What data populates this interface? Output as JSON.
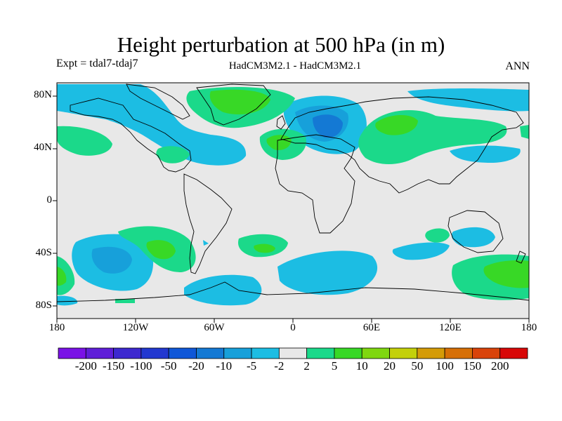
{
  "title": "Height perturbation at 500 hPa (in m)",
  "expt": "Expt = tdal7-tdaj7",
  "models": "HadCM3M2.1 - HadCM3M2.1",
  "season": "ANN",
  "lat_labels": [
    "80N",
    "40N",
    "0",
    "40S",
    "80S"
  ],
  "lon_labels": [
    "180",
    "120W",
    "60W",
    "0",
    "60E",
    "120E",
    "180"
  ],
  "colorbar": {
    "labels": [
      "-200",
      "-150",
      "-100",
      "-50",
      "-20",
      "-10",
      "-5",
      "-2",
      "2",
      "5",
      "10",
      "20",
      "50",
      "100",
      "150",
      "200"
    ],
    "colors": [
      "#7a12e6",
      "#5f1ed8",
      "#3d28cf",
      "#2238d0",
      "#0f57d8",
      "#1479d4",
      "#17a0da",
      "#1cbde3",
      "#e8e8e8",
      "#1bd98a",
      "#38d826",
      "#7fd710",
      "#c3d00a",
      "#d49b08",
      "#d66f06",
      "#d9430a",
      "#d80808"
    ]
  },
  "colors": {
    "background": "#e8e8e8",
    "neg_light": "#1cbde3",
    "neg_mid": "#17a0da",
    "neg_strong": "#1479d4",
    "pos_light": "#1bd98a",
    "pos_mid": "#38d826"
  }
}
